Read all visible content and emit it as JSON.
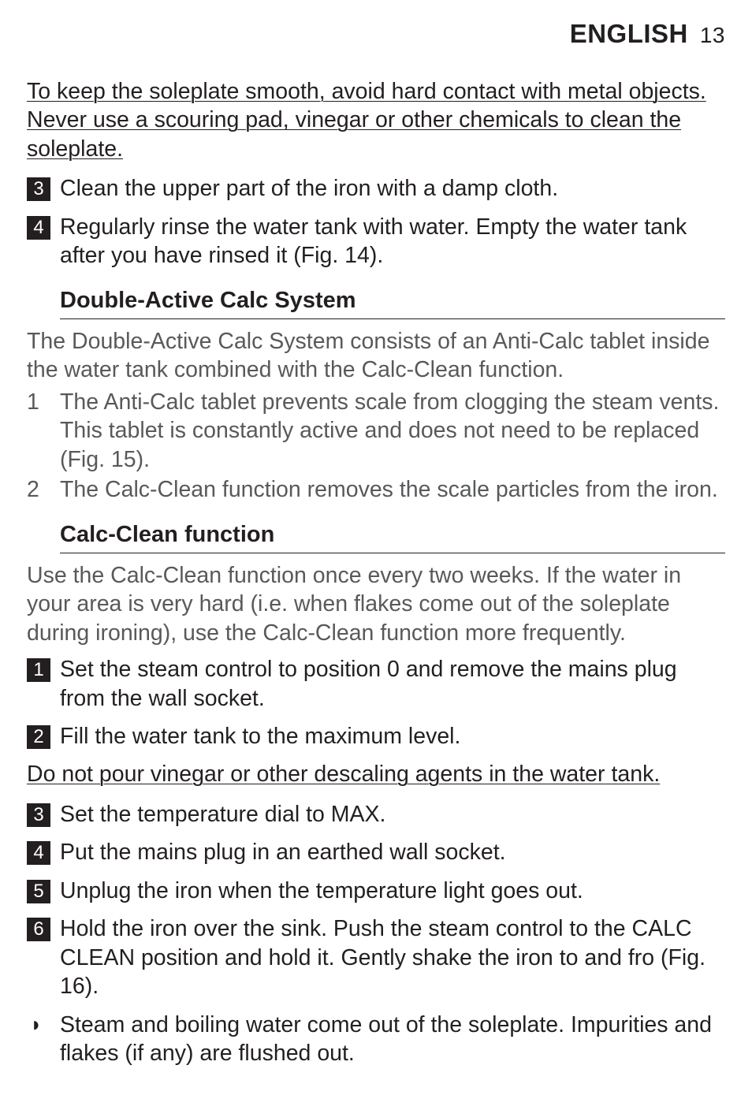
{
  "header": {
    "language": "ENGLISH",
    "page_number": "13"
  },
  "intro_note": "To keep the soleplate smooth, avoid hard contact with metal objects. Never use a scouring pad, vinegar or other chemicals to clean the soleplate.",
  "top_steps": [
    {
      "num": "3",
      "text": "Clean the upper part of the iron with a damp cloth."
    },
    {
      "num": "4",
      "text": "Regularly rinse the water tank with water. Empty the water tank after you have rinsed it (Fig. 14)."
    }
  ],
  "section1": {
    "heading": "Double-Active Calc System",
    "intro": "The Double-Active Calc System consists of an Anti-Calc tablet inside the water tank combined with the Calc-Clean function.",
    "items": [
      {
        "num": "1",
        "text": "The Anti-Calc tablet prevents scale from clogging the steam vents. This tablet is constantly active and does not need to be replaced (Fig. 15)."
      },
      {
        "num": "2",
        "text": "The Calc-Clean function removes the scale particles from the iron."
      }
    ]
  },
  "section2": {
    "heading": "Calc-Clean function",
    "intro": "Use the Calc-Clean function once every two weeks. If the water in your area is very hard (i.e. when flakes come out of the soleplate during ironing), use the Calc-Clean function more frequently.",
    "steps_a": [
      {
        "num": "1",
        "text": "Set the steam control to position 0 and remove the mains plug from the wall socket."
      },
      {
        "num": "2",
        "text": "Fill the water tank to the maximum level."
      }
    ],
    "warning": "Do not pour vinegar or other descaling agents in the water tank.",
    "steps_b": [
      {
        "num": "3",
        "text": "Set the temperature dial to MAX."
      },
      {
        "num": "4",
        "text": "Put the mains plug in an earthed wall socket."
      },
      {
        "num": "5",
        "text": "Unplug the iron when the temperature light goes out."
      },
      {
        "num": "6",
        "text": "Hold the iron over the sink. Push the steam control to the CALC CLEAN position and hold it. Gently shake the iron to and fro (Fig. 16)."
      }
    ],
    "result_bullet": "Steam and boiling water come out of the soleplate. Impurities and flakes (if any) are flushed out."
  },
  "colors": {
    "text": "#231f20",
    "light_text": "#58595b",
    "background": "#ffffff",
    "step_box_bg": "#231f20",
    "step_box_fg": "#ffffff"
  }
}
